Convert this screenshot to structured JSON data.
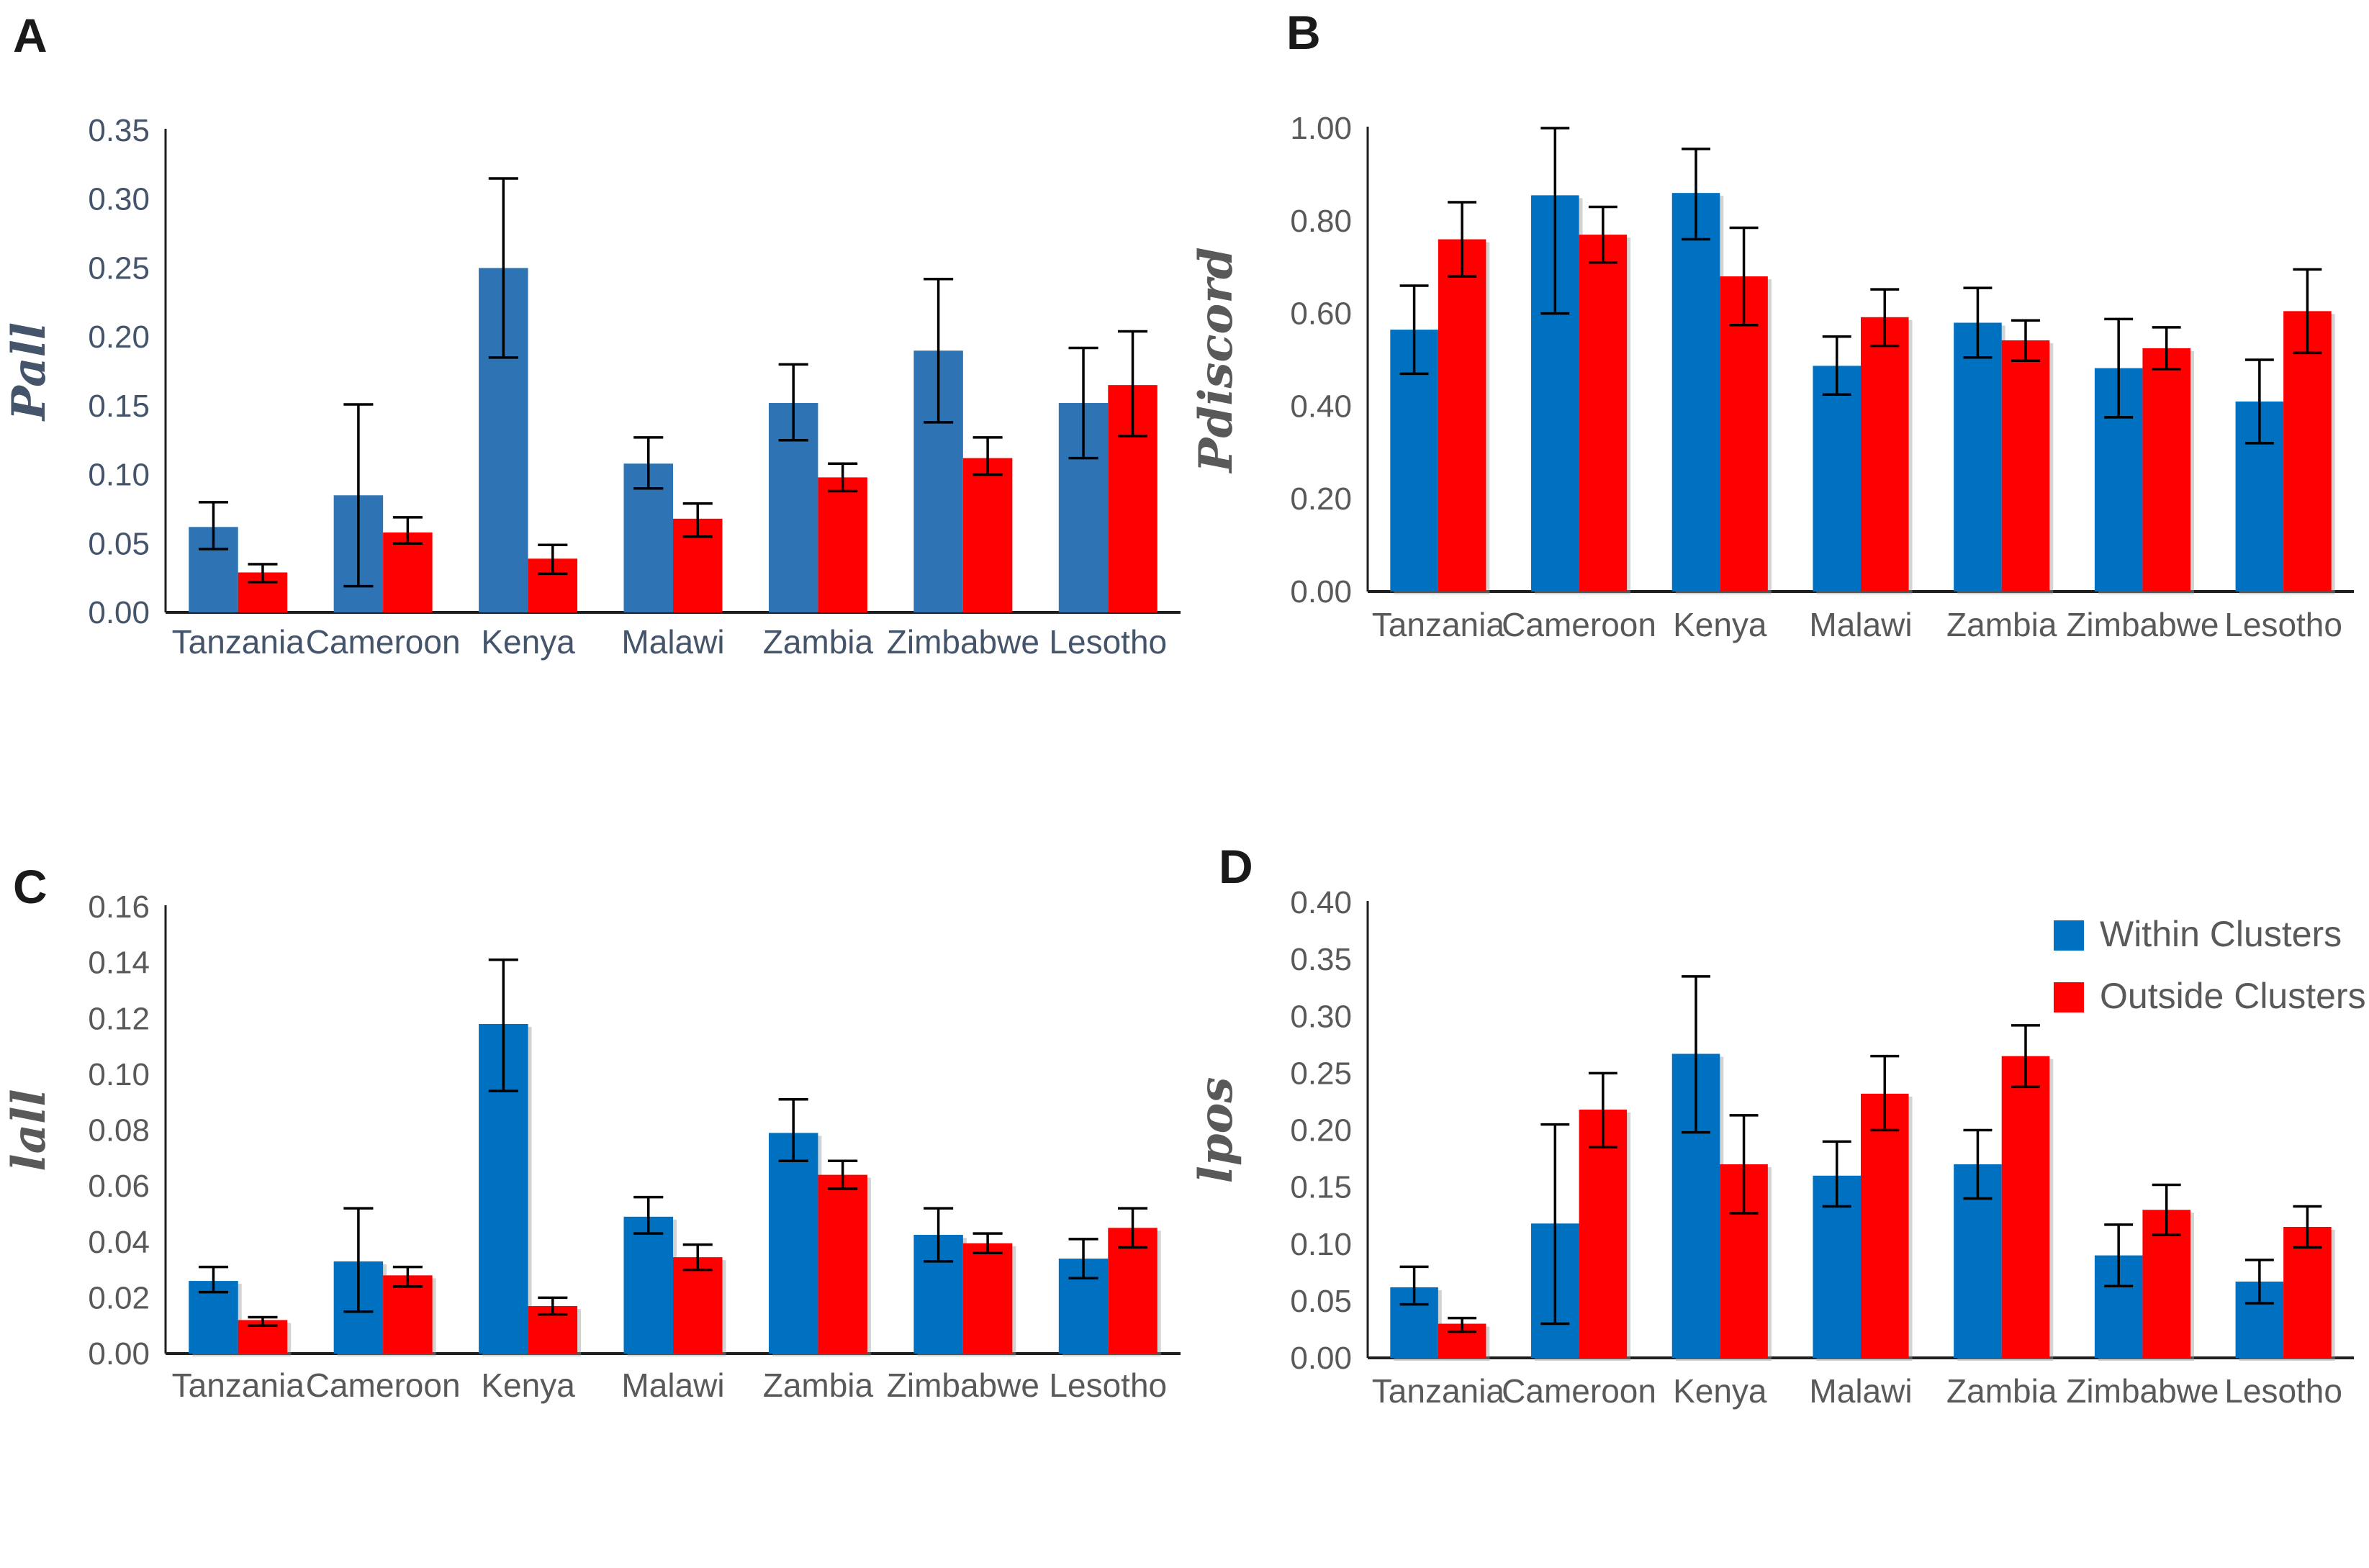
{
  "figure": {
    "background": "#ffffff",
    "series_names": [
      "Within Clusters",
      "Outside Clusters"
    ],
    "legend": {
      "position": "top-right-panel-D",
      "items": [
        {
          "label": "Within Clusters",
          "color": "#0070c0"
        },
        {
          "label": "Outside Clusters",
          "color": "#ff0000"
        }
      ],
      "text_color": "#595959"
    },
    "error_bar_color": "#000000"
  },
  "chart_data": [
    {
      "type": "bar",
      "panel": "A",
      "ylabel": "Pall",
      "categories": [
        "Tanzania",
        "Cameroon",
        "Kenya",
        "Malawi",
        "Zambia",
        "Zimbabwe",
        "Lesotho"
      ],
      "ylim": [
        0,
        0.35
      ],
      "yticks": [
        "0.00",
        "0.05",
        "0.10",
        "0.15",
        "0.20",
        "0.25",
        "0.30",
        "0.35"
      ],
      "grid": false,
      "text_color": "#44546a",
      "ylabel_color": "#44546a",
      "bar_shadow": false,
      "series": [
        {
          "name": "Within Clusters",
          "color": "#2e74b5",
          "values": [
            0.062,
            0.085,
            0.25,
            0.108,
            0.152,
            0.19,
            0.152
          ],
          "err_low": [
            0.046,
            0.019,
            0.185,
            0.09,
            0.125,
            0.138,
            0.112
          ],
          "err_high": [
            0.08,
            0.151,
            0.315,
            0.127,
            0.18,
            0.242,
            0.192
          ]
        },
        {
          "name": "Outside Clusters",
          "color": "#ff0000",
          "values": [
            0.029,
            0.058,
            0.039,
            0.068,
            0.098,
            0.112,
            0.165
          ],
          "err_low": [
            0.022,
            0.05,
            0.028,
            0.055,
            0.088,
            0.1,
            0.128
          ],
          "err_high": [
            0.035,
            0.069,
            0.049,
            0.079,
            0.108,
            0.127,
            0.204
          ]
        }
      ]
    },
    {
      "type": "bar",
      "panel": "B",
      "ylabel": "Pdiscord",
      "categories": [
        "Tanzania",
        "Cameroon",
        "Kenya",
        "Malawi",
        "Zambia",
        "Zimbabwe",
        "Lesotho"
      ],
      "ylim": [
        0,
        1.0
      ],
      "yticks": [
        "0.00",
        "0.20",
        "0.40",
        "0.60",
        "0.80",
        "1.00"
      ],
      "grid": false,
      "text_color": "#595959",
      "ylabel_color": "#595959",
      "bar_shadow": true,
      "series": [
        {
          "name": "Within Clusters",
          "color": "#0070c0",
          "values": [
            0.565,
            0.855,
            0.86,
            0.487,
            0.58,
            0.482,
            0.41
          ],
          "err_low": [
            0.47,
            0.6,
            0.76,
            0.425,
            0.505,
            0.376,
            0.32
          ],
          "err_high": [
            0.66,
            1.0,
            0.955,
            0.55,
            0.655,
            0.588,
            0.5
          ]
        },
        {
          "name": "Outside Clusters",
          "color": "#ff0000",
          "values": [
            0.76,
            0.77,
            0.68,
            0.592,
            0.542,
            0.525,
            0.605
          ],
          "err_low": [
            0.68,
            0.71,
            0.575,
            0.53,
            0.498,
            0.48,
            0.515
          ],
          "err_high": [
            0.84,
            0.83,
            0.785,
            0.652,
            0.585,
            0.57,
            0.695
          ]
        }
      ]
    },
    {
      "type": "bar",
      "panel": "C",
      "ylabel": "lall",
      "categories": [
        "Tanzania",
        "Cameroon",
        "Kenya",
        "Malawi",
        "Zambia",
        "Zimbabwe",
        "Lesotho"
      ],
      "ylim": [
        0,
        0.16
      ],
      "yticks": [
        "0.00",
        "0.02",
        "0.04",
        "0.06",
        "0.08",
        "0.10",
        "0.12",
        "0.14",
        "0.16"
      ],
      "grid": false,
      "text_color": "#595959",
      "ylabel_color": "#595959",
      "bar_shadow": true,
      "series": [
        {
          "name": "Within Clusters",
          "color": "#0070c0",
          "values": [
            0.026,
            0.033,
            0.118,
            0.049,
            0.079,
            0.0425,
            0.034
          ],
          "err_low": [
            0.022,
            0.015,
            0.094,
            0.043,
            0.069,
            0.033,
            0.027
          ],
          "err_high": [
            0.031,
            0.052,
            0.141,
            0.056,
            0.091,
            0.052,
            0.041
          ]
        },
        {
          "name": "Outside Clusters",
          "color": "#ff0000",
          "values": [
            0.012,
            0.028,
            0.017,
            0.0345,
            0.064,
            0.0395,
            0.045
          ],
          "err_low": [
            0.01,
            0.024,
            0.014,
            0.03,
            0.059,
            0.036,
            0.038
          ],
          "err_high": [
            0.013,
            0.031,
            0.02,
            0.039,
            0.069,
            0.043,
            0.052
          ]
        }
      ]
    },
    {
      "type": "bar",
      "panel": "D",
      "ylabel": "lpos",
      "categories": [
        "Tanzania",
        "Cameroon",
        "Kenya",
        "Malawi",
        "Zambia",
        "Zimbabwe",
        "Lesotho"
      ],
      "ylim": [
        0,
        0.4
      ],
      "yticks": [
        "0.00",
        "0.05",
        "0.10",
        "0.15",
        "0.20",
        "0.25",
        "0.30",
        "0.35",
        "0.40"
      ],
      "grid": false,
      "text_color": "#595959",
      "ylabel_color": "#595959",
      "bar_shadow": true,
      "show_legend": true,
      "series": [
        {
          "name": "Within Clusters",
          "color": "#0070c0",
          "values": [
            0.062,
            0.118,
            0.267,
            0.16,
            0.17,
            0.09,
            0.067
          ],
          "err_low": [
            0.047,
            0.03,
            0.198,
            0.133,
            0.14,
            0.063,
            0.048
          ],
          "err_high": [
            0.08,
            0.205,
            0.335,
            0.19,
            0.2,
            0.117,
            0.086
          ]
        },
        {
          "name": "Outside Clusters",
          "color": "#ff0000",
          "values": [
            0.03,
            0.218,
            0.17,
            0.232,
            0.265,
            0.13,
            0.115
          ],
          "err_low": [
            0.023,
            0.185,
            0.127,
            0.2,
            0.238,
            0.108,
            0.097
          ],
          "err_high": [
            0.035,
            0.25,
            0.213,
            0.265,
            0.292,
            0.152,
            0.133
          ]
        }
      ]
    }
  ]
}
